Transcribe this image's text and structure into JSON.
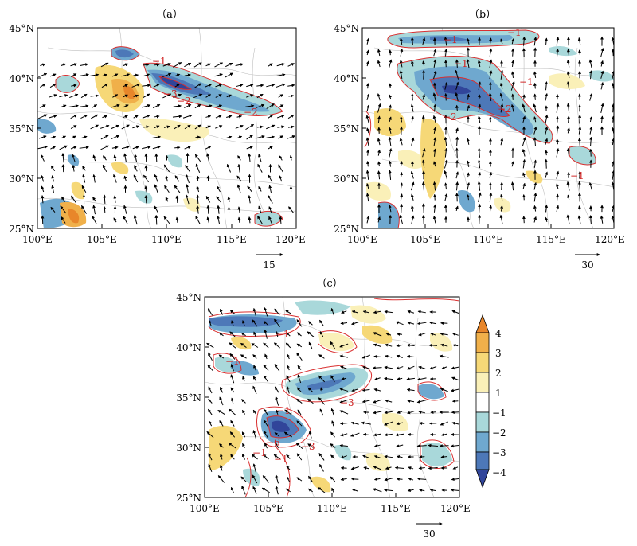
{
  "panels": [
    {
      "id": "a",
      "label": "（a）",
      "lat_labels": [
        "45°N",
        "40°N",
        "35°N",
        "30°N",
        "25°N"
      ],
      "lon_labels": [
        "100°E",
        "105°E",
        "110°E",
        "115°E",
        "120°E"
      ],
      "ref_vector": "15",
      "contour_labels": [
        "−1",
        "−3",
        "−2",
        "−2"
      ]
    },
    {
      "id": "b",
      "label": "（b）",
      "lat_labels": [
        "45°N",
        "40°N",
        "35°N",
        "30°N",
        "25°N"
      ],
      "lon_labels": [
        "100°E",
        "105°E",
        "110°E",
        "115°E",
        "120°E"
      ],
      "ref_vector": "30",
      "contour_labels": [
        "−1",
        "−1",
        "−1",
        "−2",
        "−2",
        "−1",
        "−1"
      ]
    },
    {
      "id": "c",
      "label": "（c）",
      "lat_labels": [
        "45°N",
        "40°N",
        "35°N",
        "30°N",
        "25°N"
      ],
      "lon_labels": [
        "100°E",
        "105°E",
        "110°E",
        "115°E",
        "120°E"
      ],
      "ref_vector": "30",
      "contour_labels": [
        "−1",
        "−1",
        "−1",
        "−3",
        "−6",
        "−1",
        "−3",
        "−1"
      ]
    }
  ],
  "colorbar": {
    "ticks": [
      "4",
      "3",
      "2",
      "1",
      "−1",
      "−2",
      "−3",
      "−4"
    ],
    "colors": {
      "pos4": "#e8862a",
      "pos3": "#f0b04a",
      "pos2": "#f6d877",
      "pos1": "#faf0b8",
      "zero": "#ffffff",
      "neg1": "#a9d8da",
      "neg2": "#6fa8cf",
      "neg3": "#4d78b8",
      "neg4": "#31459a"
    }
  }
}
